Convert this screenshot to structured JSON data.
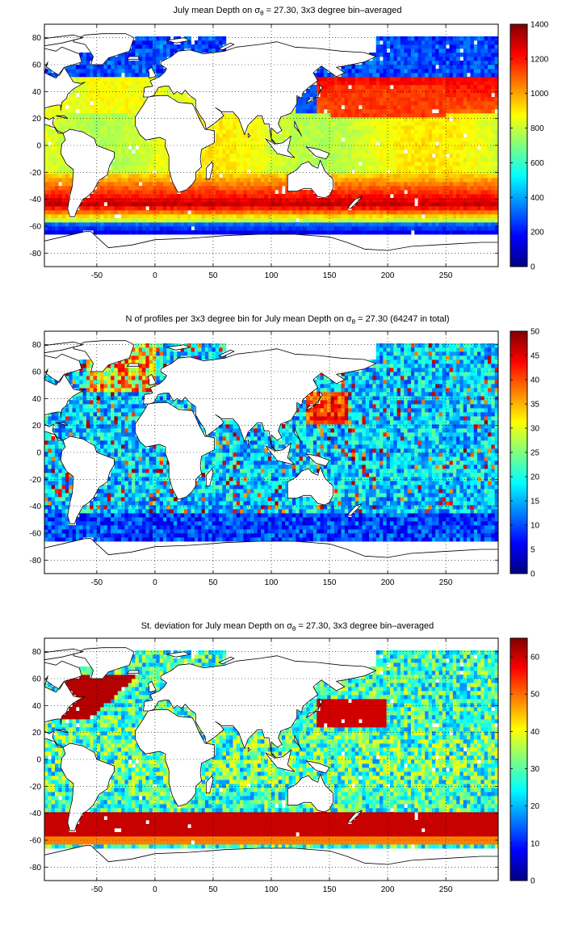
{
  "colors": {
    "land": "#ffffff",
    "coastline": "#000000",
    "grid": "#000000",
    "no_data": "#ffffff",
    "colormap": "jet"
  },
  "chart_data": [
    {
      "type": "heatmap",
      "title_parts": {
        "pre": "July mean Depth on ",
        "sym": "σ",
        "sub": "θ",
        "post": " = 27.30, 3x3 degree bin–averaged"
      },
      "x_ticks": [
        -50,
        0,
        50,
        100,
        150,
        200,
        250
      ],
      "y_ticks": [
        80,
        60,
        40,
        20,
        0,
        -20,
        -40,
        -60,
        -80
      ],
      "x_range": [
        -95,
        295
      ],
      "y_range": [
        -90,
        90
      ],
      "grid": true,
      "colorbar": {
        "min": 0,
        "max": 1400,
        "ticks": [
          0,
          200,
          400,
          600,
          800,
          1000,
          1200,
          1400
        ]
      },
      "field": "depth"
    },
    {
      "type": "heatmap",
      "title_parts": {
        "pre": "N of profiles per 3x3 degree bin for July mean Depth on ",
        "sym": "σ",
        "sub": "θ",
        "post": " = 27.30 (64247 in total)"
      },
      "x_ticks": [
        -50,
        0,
        50,
        100,
        150,
        200,
        250
      ],
      "y_ticks": [
        80,
        60,
        40,
        20,
        0,
        -20,
        -40,
        -60,
        -80
      ],
      "x_range": [
        -95,
        295
      ],
      "y_range": [
        -90,
        90
      ],
      "grid": true,
      "colorbar": {
        "min": 0,
        "max": 50,
        "ticks": [
          0,
          5,
          10,
          15,
          20,
          25,
          30,
          35,
          40,
          45,
          50
        ]
      },
      "field": "count"
    },
    {
      "type": "heatmap",
      "title_parts": {
        "pre": "St. deviation for July mean Depth on ",
        "sym": "σ",
        "sub": "θ",
        "post": " = 27.30, 3x3 degree bin–averaged"
      },
      "x_ticks": [
        -50,
        0,
        50,
        100,
        150,
        200,
        250
      ],
      "y_ticks": [
        80,
        60,
        40,
        20,
        0,
        -20,
        -40,
        -60,
        -80
      ],
      "x_range": [
        -95,
        295
      ],
      "y_range": [
        -90,
        90
      ],
      "grid": true,
      "colorbar": {
        "min": 0,
        "max": 65,
        "ticks": [
          0,
          10,
          20,
          30,
          40,
          50,
          60
        ]
      },
      "field": "std"
    }
  ]
}
